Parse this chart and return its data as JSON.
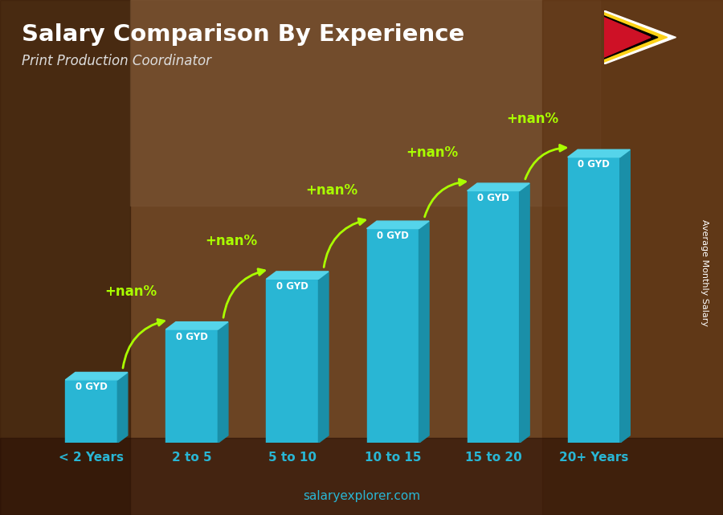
{
  "title": "Salary Comparison By Experience",
  "subtitle": "Print Production Coordinator",
  "categories": [
    "< 2 Years",
    "2 to 5",
    "5 to 10",
    "10 to 15",
    "15 to 20",
    "20+ Years"
  ],
  "bar_color_face": "#29b6d4",
  "bar_color_dark": "#1a8fa8",
  "bar_color_top": "#55d4ea",
  "salary_labels": [
    "0 GYD",
    "0 GYD",
    "0 GYD",
    "0 GYD",
    "0 GYD",
    "0 GYD"
  ],
  "change_labels": [
    "+nan%",
    "+nan%",
    "+nan%",
    "+nan%",
    "+nan%"
  ],
  "title_color": "#ffffff",
  "subtitle_color": "#dddddd",
  "label_color": "#ffffff",
  "change_color": "#aaff00",
  "ylabel": "Average Monthly Salary",
  "ylabel_color": "#ffffff",
  "watermark": "salaryexplorer.com",
  "watermark_salary": "salary",
  "watermark_explorer": "explorer.com",
  "watermark_color": "#29b6d4",
  "bg_color": "#6b4423",
  "tick_color": "#29b6d4",
  "bar_heights": [
    1.5,
    2.7,
    3.9,
    5.1,
    6.0,
    6.8
  ],
  "figwidth": 9.0,
  "figheight": 6.41,
  "dpi": 100
}
